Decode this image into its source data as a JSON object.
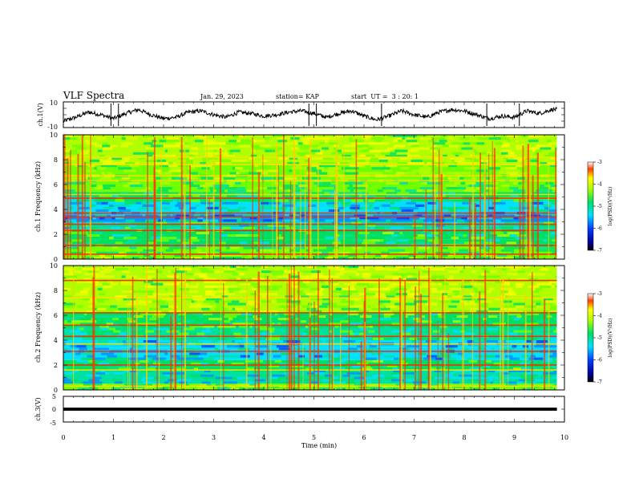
{
  "header": {
    "title": "VLF Spectra",
    "date": "Jan. 29, 2023",
    "station": "station= KAP",
    "start_ut": "start  UT =  3 : 20: 1"
  },
  "chart_data": [
    {
      "type": "line",
      "panel": "ch1-waveform",
      "ylabel": "ch.1(V)",
      "ylim": [
        -10,
        10
      ],
      "yticks": [
        "10",
        "-10"
      ],
      "xlim": [
        0,
        10
      ],
      "x": [
        0,
        0.25,
        0.5,
        0.75,
        1.0,
        1.25,
        1.5,
        1.75,
        2.0,
        2.25,
        2.5,
        2.75,
        3.0,
        3.25,
        3.5,
        3.75,
        4.0,
        4.25,
        4.5,
        4.75,
        5.0,
        5.25,
        5.5,
        5.75,
        6.0,
        6.25,
        6.5,
        6.75,
        7.0,
        7.25,
        7.5,
        7.75,
        8.0,
        8.25,
        8.5,
        8.75,
        9.0,
        9.25,
        9.5,
        9.75,
        9.85
      ],
      "y": [
        -5,
        -2,
        2,
        0,
        -3,
        1,
        4,
        0,
        -3,
        -2,
        2,
        3,
        0,
        -2,
        2,
        1,
        -1,
        0,
        2,
        3,
        1,
        -2,
        1,
        3,
        -1,
        -4,
        -1,
        3,
        0,
        -2,
        2,
        4,
        3,
        0,
        -3,
        -1,
        -2,
        3,
        1,
        4,
        4
      ]
    },
    {
      "type": "heatmap",
      "panel": "ch1-spectrogram",
      "ylabel": "ch.1 Frequency (kHz)",
      "ylim": [
        0,
        10
      ],
      "yticks": [
        "0",
        "2",
        "4",
        "6",
        "8",
        "10"
      ],
      "xlim": [
        0,
        10
      ],
      "colorbar": {
        "label": "log(PSD)(V²/Hz)",
        "range": [
          -7,
          -3
        ],
        "ticks": [
          "-3",
          "-4",
          "-5",
          "-6",
          "-7"
        ]
      },
      "bands_khz": [
        {
          "f0": 0.0,
          "f1": 0.4,
          "level": 0.55
        },
        {
          "f0": 0.4,
          "f1": 1.0,
          "level": 0.5
        },
        {
          "f0": 1.0,
          "f1": 1.6,
          "level": 0.42
        },
        {
          "f0": 1.6,
          "f1": 2.4,
          "level": 0.46
        },
        {
          "f0": 2.4,
          "f1": 3.0,
          "level": 0.38
        },
        {
          "f0": 3.0,
          "f1": 3.6,
          "level": 0.22
        },
        {
          "f0": 3.6,
          "f1": 4.6,
          "level": 0.28
        },
        {
          "f0": 4.6,
          "f1": 5.4,
          "level": 0.42
        },
        {
          "f0": 5.4,
          "f1": 6.4,
          "level": 0.5
        },
        {
          "f0": 6.4,
          "f1": 7.6,
          "level": 0.58
        },
        {
          "f0": 7.6,
          "f1": 10.0,
          "level": 0.62
        }
      ],
      "lines_khz": [
        0.4,
        1.1,
        2.3,
        2.8,
        3.4,
        3.7,
        4.9,
        5.2,
        6.3,
        6.7,
        7.6,
        8.2
      ]
    },
    {
      "type": "heatmap",
      "panel": "ch2-spectrogram",
      "ylabel": "ch.2 Frequency (kHz)",
      "ylim": [
        0,
        10
      ],
      "yticks": [
        "0",
        "2",
        "4",
        "6",
        "8",
        "10"
      ],
      "xlim": [
        0,
        10
      ],
      "colorbar": {
        "label": "log(PSD)(V²/Hz)",
        "range": [
          -7,
          -3
        ],
        "ticks": [
          "-3",
          "-4",
          "-5",
          "-6",
          "-7"
        ]
      },
      "bands_khz": [
        {
          "f0": 0.0,
          "f1": 0.5,
          "level": 0.5
        },
        {
          "f0": 0.5,
          "f1": 1.6,
          "level": 0.32
        },
        {
          "f0": 1.6,
          "f1": 2.4,
          "level": 0.42
        },
        {
          "f0": 2.4,
          "f1": 3.4,
          "level": 0.3
        },
        {
          "f0": 3.4,
          "f1": 4.0,
          "level": 0.24
        },
        {
          "f0": 4.0,
          "f1": 5.0,
          "level": 0.4
        },
        {
          "f0": 5.0,
          "f1": 6.2,
          "level": 0.48
        },
        {
          "f0": 6.2,
          "f1": 7.6,
          "level": 0.6
        },
        {
          "f0": 7.6,
          "f1": 10.0,
          "level": 0.66
        }
      ],
      "lines_khz": [
        0.3,
        1.6,
        2.0,
        3.1,
        3.7,
        4.3,
        5.2,
        6.2,
        7.4,
        8.8
      ]
    },
    {
      "type": "line",
      "panel": "ch3-waveform",
      "ylabel": "ch.3(V)",
      "ylim": [
        -5,
        5
      ],
      "yticks": [
        "5",
        "0",
        "-5"
      ],
      "xlim": [
        0,
        10
      ],
      "x": [
        0,
        9.85
      ],
      "y": [
        0,
        0
      ],
      "xlabel": "Time (min)",
      "xticks": [
        "0",
        "1",
        "2",
        "3",
        "4",
        "5",
        "6",
        "7",
        "8",
        "9",
        "10"
      ]
    }
  ]
}
